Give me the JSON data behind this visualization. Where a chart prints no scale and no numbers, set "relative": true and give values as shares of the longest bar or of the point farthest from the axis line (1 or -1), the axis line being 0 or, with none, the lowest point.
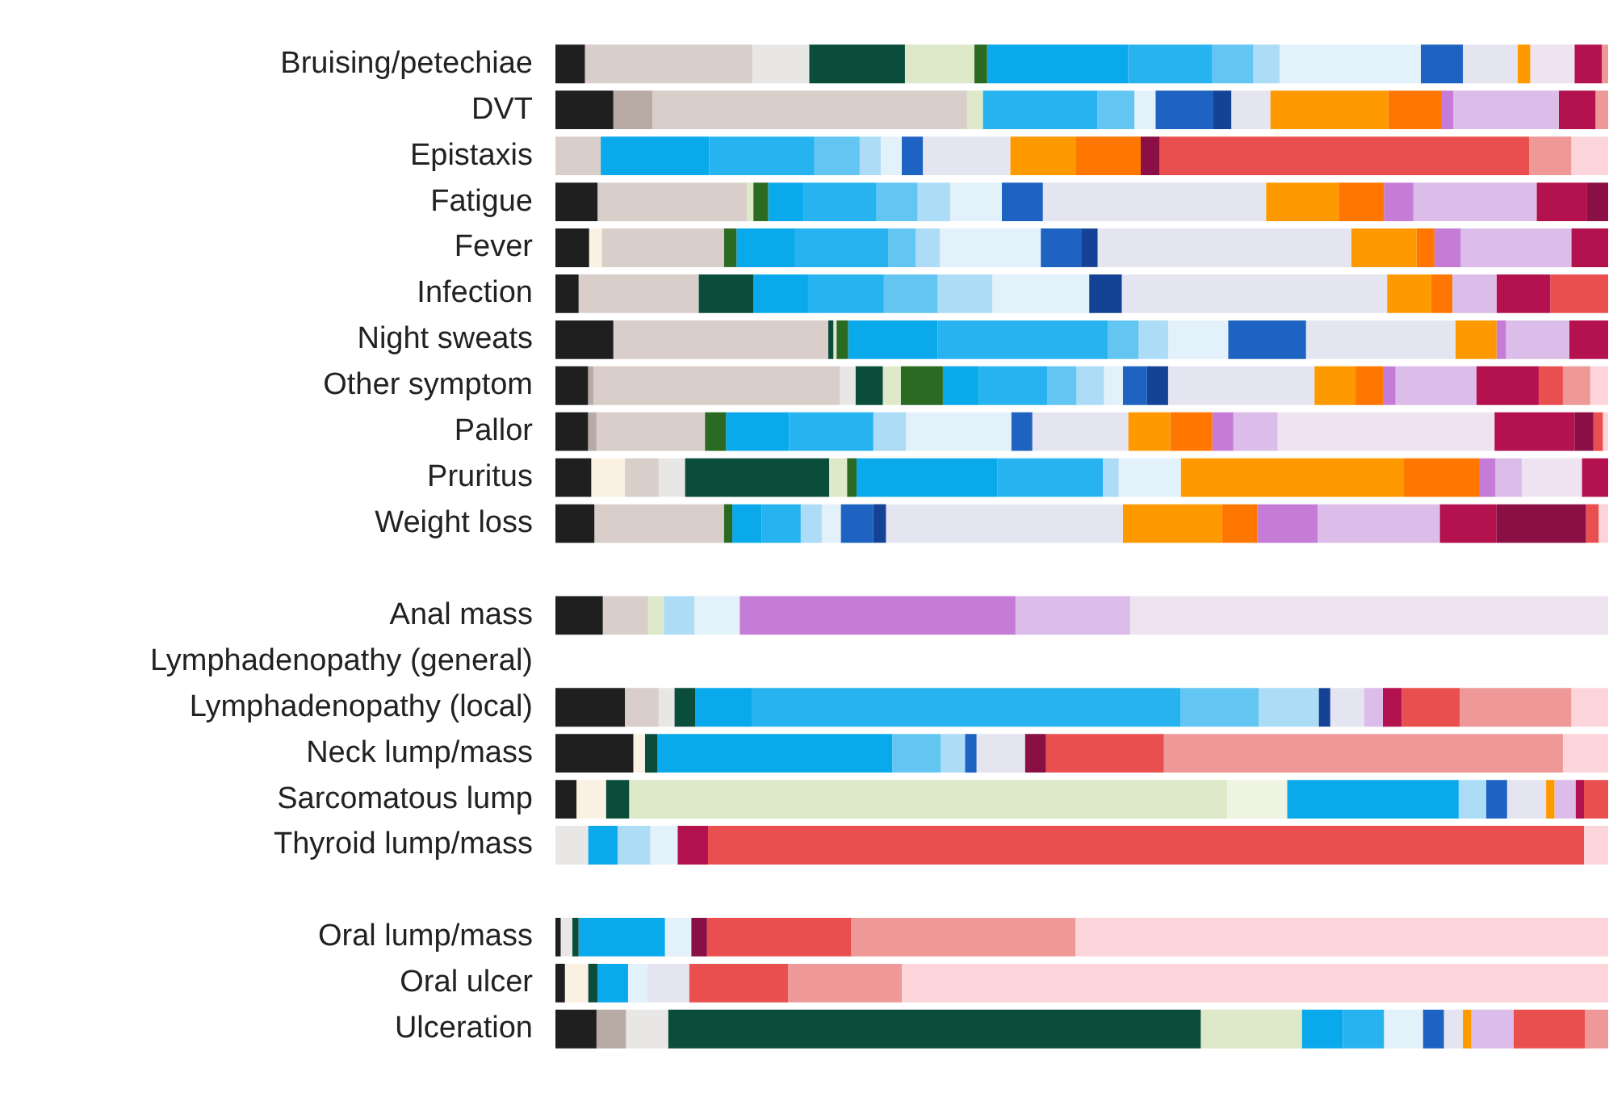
{
  "chart_data": {
    "type": "bar",
    "orientation": "horizontal",
    "stacked": true,
    "relative": true,
    "legend": false,
    "tick_labels": "y",
    "categories": [
      "Bruising/petechiae",
      "DVT",
      "Epistaxis",
      "Fatigue",
      "Fever",
      "Infection",
      "Night sweats",
      "Other symptom",
      "Pallor",
      "Pruritus",
      "Weight loss",
      null,
      "Anal mass",
      "Lymphadenopathy (general)",
      "Lymphadenopathy (local)",
      "Neck lump/mass",
      "Sarcomatous lump",
      "Thyroid lump/mass",
      null,
      "Oral lump/mass",
      "Oral ulcer",
      "Ulceration"
    ],
    "series": [
      {
        "color": "#1f1f1f",
        "values": [
          0.028,
          0.055,
          null,
          0.04,
          0.032,
          0.022,
          0.055,
          0.031,
          0.031,
          0.034,
          0.037,
          null,
          0.045,
          null,
          0.066,
          0.074,
          0.02,
          null,
          null,
          0.005,
          0.009,
          0.039
        ]
      },
      {
        "color": "#b8aaa5",
        "values": [
          null,
          0.037,
          null,
          null,
          null,
          null,
          null,
          0.005,
          0.008,
          null,
          null,
          null,
          null,
          null,
          null,
          null,
          null,
          null,
          null,
          null,
          null,
          0.028
        ]
      },
      {
        "color": "#fbf1e3",
        "values": [
          null,
          null,
          null,
          null,
          0.012,
          null,
          null,
          null,
          null,
          0.032,
          null,
          null,
          null,
          null,
          null,
          0.011,
          0.028,
          null,
          null,
          null,
          0.022,
          null
        ]
      },
      {
        "color": "#d9cec9",
        "values": [
          0.159,
          0.299,
          0.043,
          0.142,
          0.116,
          0.114,
          0.204,
          0.234,
          0.103,
          0.032,
          0.123,
          null,
          0.043,
          null,
          0.032,
          null,
          null,
          null,
          null,
          null,
          null,
          null
        ]
      },
      {
        "color": "#e9e7e6",
        "values": [
          0.054,
          null,
          null,
          null,
          null,
          null,
          null,
          0.015,
          null,
          0.025,
          null,
          null,
          null,
          null,
          0.015,
          null,
          null,
          0.031,
          null,
          0.011,
          null,
          0.04
        ]
      },
      {
        "color": "#0b4d3b",
        "values": [
          0.091,
          null,
          null,
          null,
          null,
          0.052,
          0.005,
          0.026,
          null,
          0.137,
          null,
          null,
          null,
          null,
          0.02,
          0.012,
          0.022,
          null,
          null,
          0.006,
          0.009,
          0.506
        ]
      },
      {
        "color": "#dde9c9",
        "values": [
          0.066,
          0.015,
          null,
          0.006,
          null,
          null,
          0.003,
          0.017,
          null,
          0.017,
          null,
          null,
          0.015,
          null,
          null,
          null,
          0.568,
          null,
          null,
          null,
          null,
          0.096
        ]
      },
      {
        "color": "#eef3e2",
        "values": [
          null,
          null,
          null,
          null,
          null,
          null,
          null,
          null,
          null,
          null,
          null,
          null,
          null,
          null,
          null,
          null,
          0.057,
          null,
          null,
          null,
          null,
          null
        ]
      },
      {
        "color": "#2a6a22",
        "values": [
          0.012,
          null,
          null,
          0.014,
          0.012,
          null,
          0.011,
          0.04,
          0.02,
          0.009,
          0.008,
          null,
          null,
          null,
          null,
          null,
          null,
          null,
          null,
          null,
          null,
          null
        ]
      },
      {
        "color": "#0aa9ec",
        "values": [
          0.134,
          null,
          0.103,
          0.034,
          0.055,
          0.052,
          0.085,
          0.034,
          0.06,
          0.134,
          0.028,
          null,
          null,
          null,
          0.054,
          0.223,
          0.163,
          0.028,
          null,
          0.082,
          0.029,
          0.039
        ]
      },
      {
        "color": "#27b3f0",
        "values": [
          0.08,
          0.109,
          0.1,
          0.069,
          0.089,
          0.072,
          0.162,
          0.065,
          0.08,
          0.1,
          0.037,
          null,
          null,
          null,
          0.407,
          null,
          null,
          null,
          null,
          null,
          null,
          0.039
        ]
      },
      {
        "color": "#63c6f2",
        "values": [
          0.039,
          0.035,
          0.043,
          0.039,
          0.026,
          0.051,
          0.029,
          0.028,
          null,
          null,
          null,
          null,
          null,
          null,
          0.074,
          0.046,
          null,
          null,
          null,
          null,
          null,
          null
        ]
      },
      {
        "color": "#acdcf6",
        "values": [
          0.025,
          null,
          0.02,
          0.031,
          0.023,
          0.052,
          0.028,
          0.026,
          0.031,
          0.015,
          0.02,
          null,
          0.029,
          null,
          0.057,
          0.023,
          0.026,
          0.031,
          null,
          null,
          null,
          null
        ]
      },
      {
        "color": "#e3f1fa",
        "values": [
          0.134,
          0.02,
          0.02,
          0.049,
          0.096,
          0.092,
          0.057,
          0.018,
          0.1,
          0.059,
          0.018,
          null,
          0.043,
          null,
          null,
          null,
          null,
          0.026,
          null,
          0.025,
          0.018,
          0.037
        ]
      },
      {
        "color": "#1f63c2",
        "values": [
          0.04,
          0.055,
          0.02,
          0.039,
          0.039,
          null,
          0.074,
          0.023,
          0.02,
          null,
          0.031,
          null,
          null,
          null,
          null,
          0.011,
          0.02,
          null,
          null,
          null,
          null,
          0.02
        ]
      },
      {
        "color": "#144396",
        "values": [
          null,
          0.017,
          null,
          null,
          0.015,
          0.031,
          null,
          0.02,
          null,
          null,
          0.012,
          null,
          null,
          null,
          0.011,
          null,
          null,
          null,
          null,
          null,
          null,
          null
        ]
      },
      {
        "color": "#e5e5f2",
        "values": [
          0.052,
          0.037,
          0.083,
          0.212,
          0.241,
          0.252,
          0.142,
          0.139,
          0.091,
          null,
          0.225,
          null,
          null,
          null,
          0.032,
          0.046,
          0.037,
          null,
          null,
          null,
          0.04,
          0.018
        ]
      },
      {
        "color": "#ff9900",
        "values": [
          0.012,
          0.112,
          0.062,
          0.069,
          0.062,
          0.042,
          0.039,
          0.039,
          0.04,
          0.212,
          0.094,
          null,
          null,
          null,
          null,
          null,
          0.008,
          null,
          null,
          null,
          null,
          0.008
        ]
      },
      {
        "color": "#ff7700",
        "values": [
          null,
          0.051,
          0.062,
          0.043,
          0.017,
          0.02,
          null,
          0.026,
          0.04,
          0.072,
          0.034,
          null,
          null,
          null,
          null,
          null,
          null,
          null,
          null,
          null,
          null,
          null
        ]
      },
      {
        "color": "#c47cd6",
        "values": [
          null,
          0.011,
          null,
          0.028,
          0.025,
          null,
          0.009,
          0.012,
          0.02,
          0.015,
          0.057,
          null,
          0.262,
          null,
          null,
          null,
          null,
          null,
          null,
          null,
          null,
          null
        ]
      },
      {
        "color": "#dcbde9",
        "values": [
          null,
          0.1,
          null,
          0.117,
          0.105,
          0.042,
          0.06,
          0.077,
          0.042,
          0.025,
          0.116,
          null,
          0.109,
          null,
          0.018,
          null,
          0.02,
          null,
          null,
          null,
          null,
          0.04
        ]
      },
      {
        "color": "#efe3f2",
        "values": [
          0.042,
          null,
          null,
          null,
          null,
          null,
          null,
          null,
          0.206,
          0.057,
          null,
          null,
          0.454,
          null,
          null,
          null,
          null,
          null,
          null,
          null,
          null,
          null
        ]
      },
      {
        "color": "#b3124f",
        "values": [
          0.026,
          0.035,
          null,
          0.048,
          0.035,
          0.051,
          0.037,
          0.059,
          0.076,
          0.025,
          0.054,
          null,
          null,
          null,
          0.018,
          null,
          0.008,
          0.029,
          null,
          null,
          null,
          null
        ]
      },
      {
        "color": "#8a0f45",
        "values": [
          null,
          null,
          0.018,
          0.02,
          null,
          null,
          null,
          null,
          0.018,
          null,
          0.085,
          null,
          null,
          null,
          null,
          0.02,
          null,
          null,
          null,
          0.015,
          null,
          null
        ]
      },
      {
        "color": "#ea4f4f",
        "values": [
          null,
          null,
          0.351,
          null,
          null,
          0.055,
          null,
          0.023,
          0.009,
          null,
          0.012,
          null,
          null,
          null,
          0.055,
          0.112,
          0.023,
          0.832,
          null,
          0.137,
          0.094,
          0.068
        ]
      },
      {
        "color": "#ee9898",
        "values": [
          0.006,
          0.012,
          0.04,
          null,
          null,
          null,
          null,
          0.026,
          null,
          null,
          null,
          null,
          null,
          null,
          0.106,
          0.379,
          null,
          null,
          null,
          0.213,
          0.108,
          0.022
        ]
      },
      {
        "color": "#fcd5da",
        "values": [
          null,
          null,
          0.035,
          null,
          null,
          null,
          null,
          0.017,
          0.005,
          null,
          0.009,
          null,
          null,
          null,
          0.035,
          0.043,
          null,
          0.023,
          null,
          0.506,
          0.671,
          null
        ]
      }
    ]
  }
}
